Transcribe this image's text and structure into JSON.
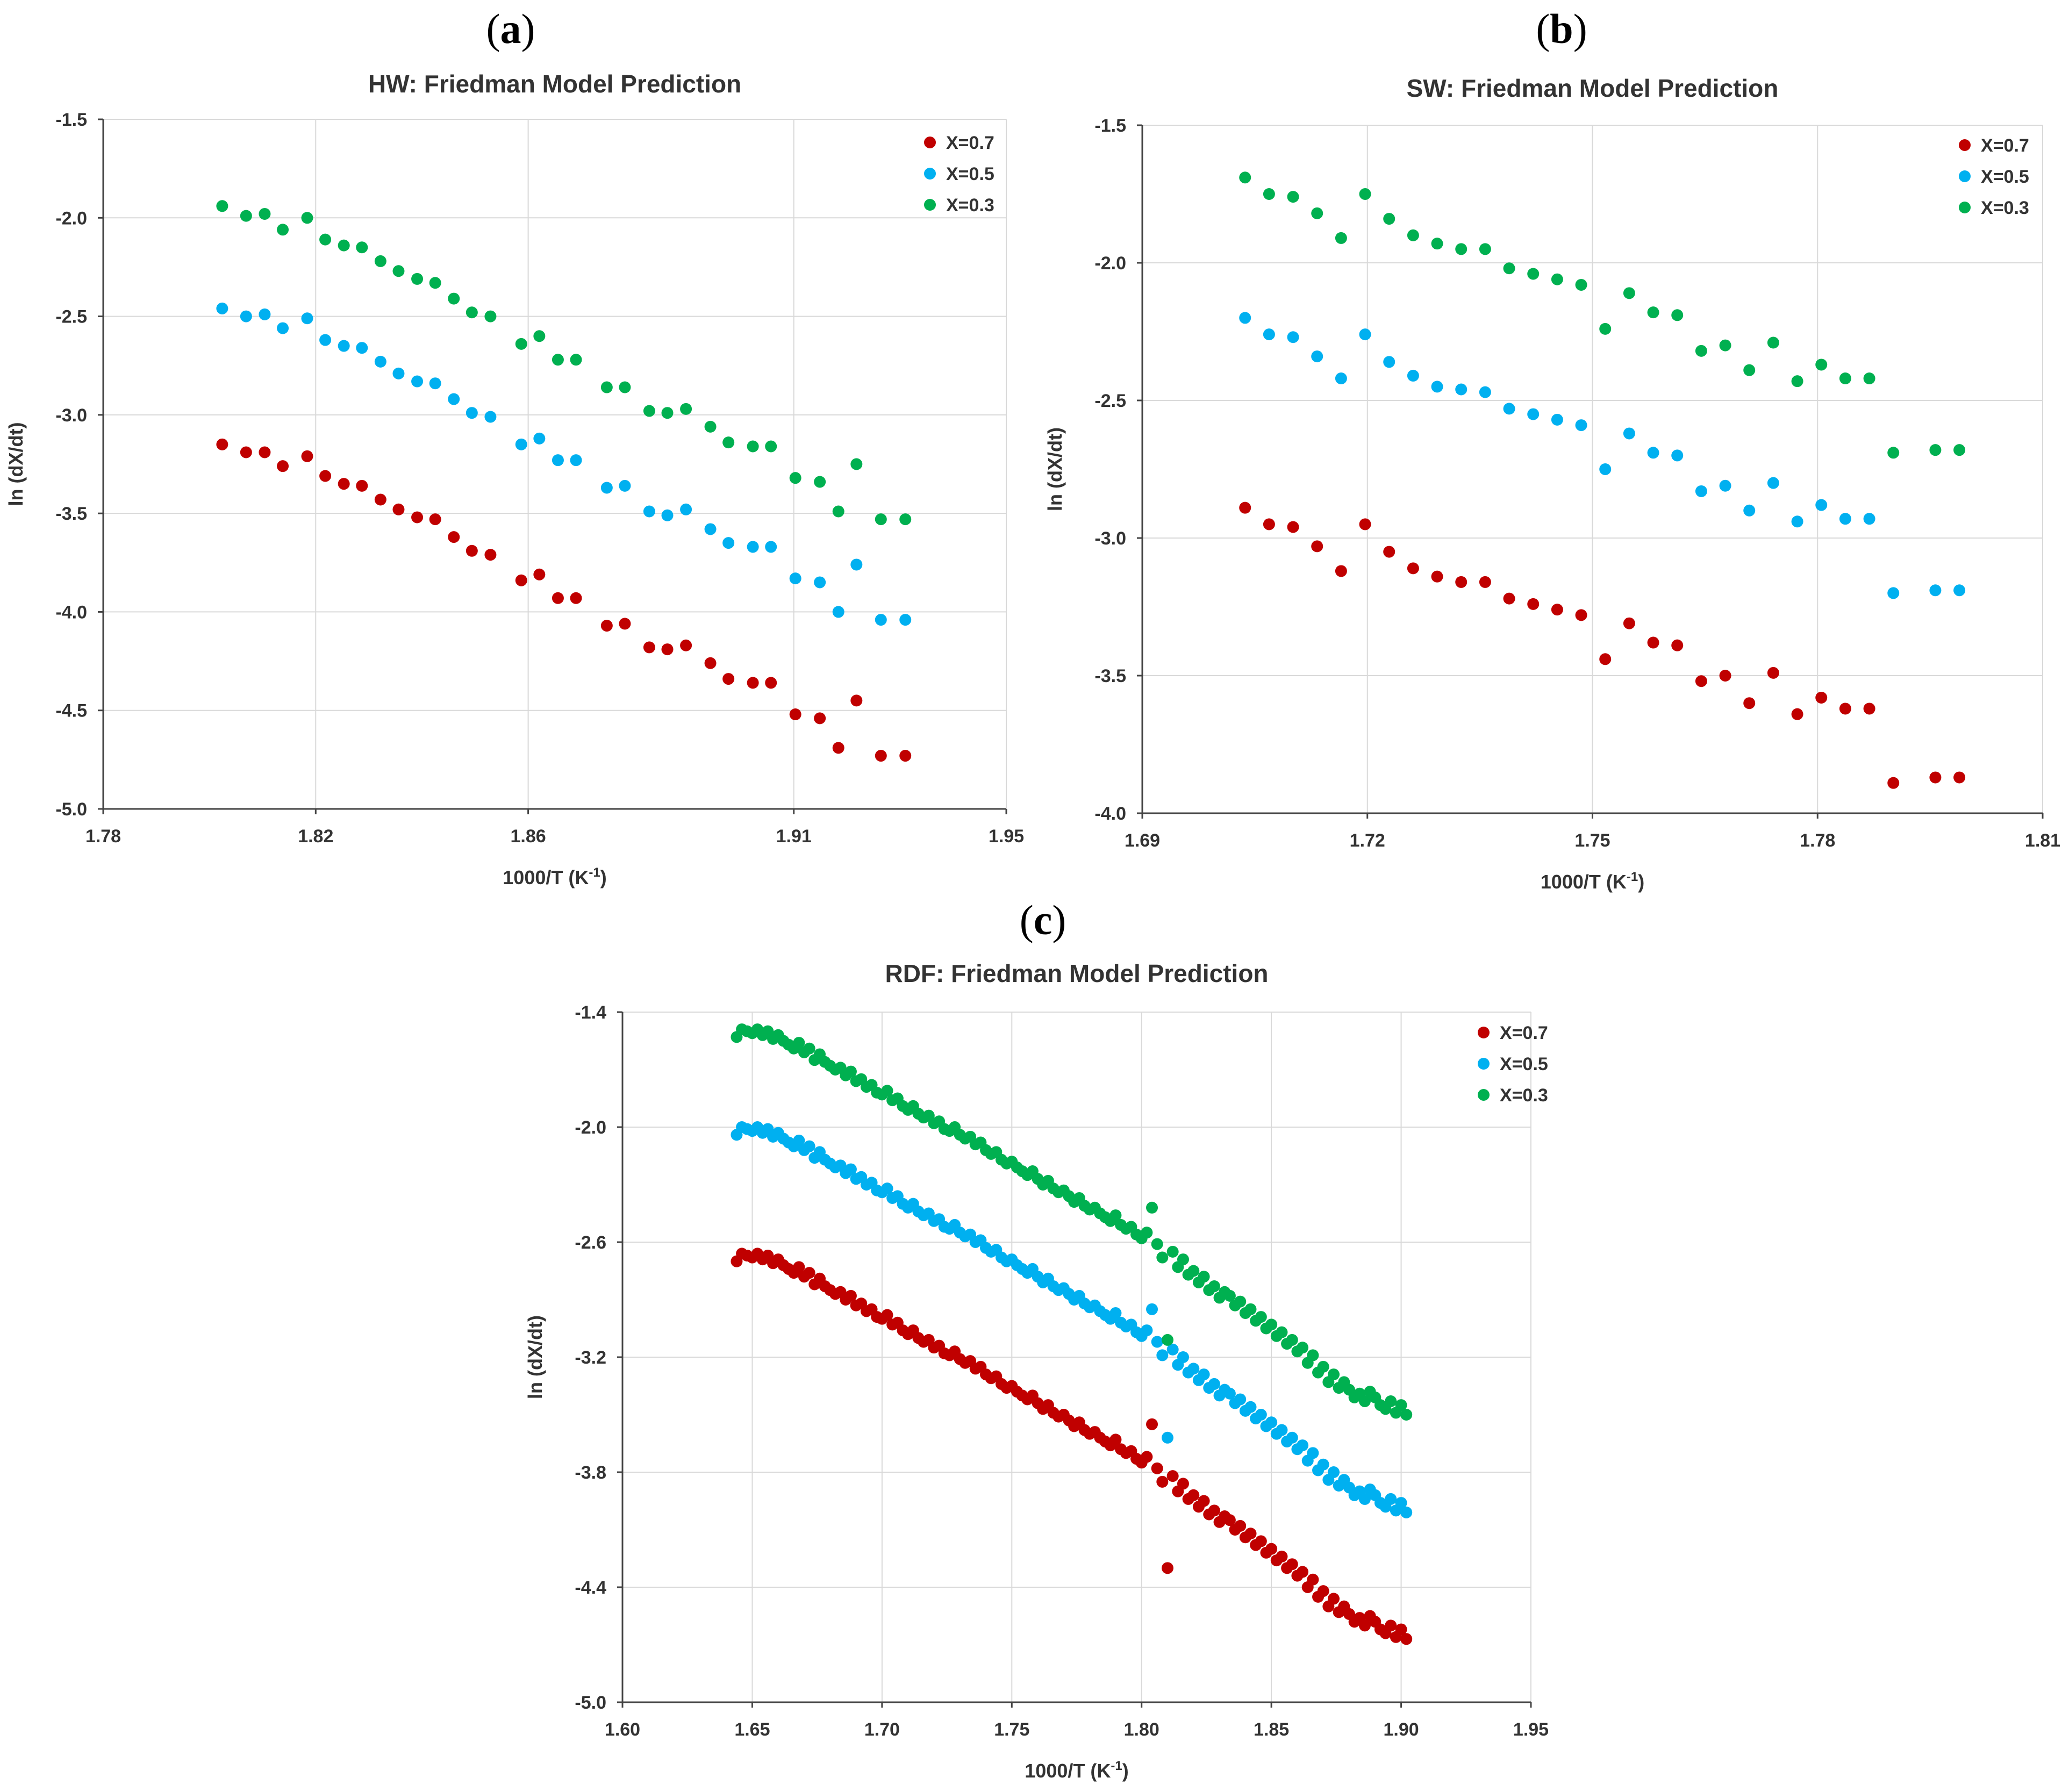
{
  "panels": [
    {
      "id": "a",
      "label_open": "(",
      "label_letter": "a",
      "label_close": ")"
    },
    {
      "id": "b",
      "label_open": "(",
      "label_letter": "b",
      "label_close": ")"
    },
    {
      "id": "c",
      "label_open": "(",
      "label_letter": "c",
      "label_close": ")"
    }
  ],
  "colors": {
    "x07": "#c00000",
    "x05": "#00b0f0",
    "x03": "#00b050"
  },
  "chart_data": [
    {
      "id": "a",
      "type": "scatter",
      "title": "HW: Friedman Model Prediction",
      "xlabel": "1000/T (K",
      "xlabel_sup": "-1",
      "xlabel_close": ")",
      "ylabel": "ln (dX/dt)",
      "xlim": [
        1.78,
        1.95
      ],
      "ylim": [
        -5.0,
        -1.5
      ],
      "xticks": [
        1.78,
        1.82,
        1.86,
        1.91,
        1.95
      ],
      "xtick_labels": [
        "1.78",
        "1.82",
        "1.86",
        "1.91",
        "1.95"
      ],
      "yticks": [
        -5.0,
        -4.5,
        -4.0,
        -3.5,
        -3.0,
        -2.5,
        -2.0,
        -1.5
      ],
      "ytick_labels": [
        "-5.0",
        "-4.5",
        "-4.0",
        "-3.5",
        "-3.0",
        "-2.5",
        "-2.0",
        "-1.5"
      ],
      "legend": [
        "X=0.7",
        "X=0.5",
        "X=0.3"
      ],
      "x": [
        1.8024,
        1.8069,
        1.8104,
        1.8138,
        1.8184,
        1.8218,
        1.8253,
        1.8287,
        1.8322,
        1.8356,
        1.8391,
        1.8425,
        1.846,
        1.8494,
        1.8529,
        1.8587,
        1.8621,
        1.8656,
        1.869,
        1.8748,
        1.8782,
        1.8828,
        1.8862,
        1.8897,
        1.8943,
        1.8977,
        1.9023,
        1.9057,
        1.9103,
        1.9149,
        1.9184,
        1.9218,
        1.9264,
        1.931
      ],
      "series": [
        {
          "name": "X=0.7",
          "color": "#c00000",
          "y": [
            -3.15,
            -3.19,
            -3.19,
            -3.26,
            -3.21,
            -3.31,
            -3.35,
            -3.36,
            -3.43,
            -3.48,
            -3.52,
            -3.53,
            -3.62,
            -3.69,
            -3.71,
            -3.84,
            -3.81,
            -3.93,
            -3.93,
            -4.07,
            -4.06,
            -4.18,
            -4.19,
            -4.17,
            -4.26,
            -4.34,
            -4.36,
            -4.36,
            -4.52,
            -4.54,
            -4.69,
            -4.45,
            -4.73,
            -4.73
          ]
        },
        {
          "name": "X=0.5",
          "color": "#00b0f0",
          "y": [
            -2.46,
            -2.5,
            -2.49,
            -2.56,
            -2.51,
            -2.62,
            -2.65,
            -2.66,
            -2.73,
            -2.79,
            -2.83,
            -2.84,
            -2.92,
            -2.99,
            -3.01,
            -3.15,
            -3.12,
            -3.23,
            -3.23,
            -3.37,
            -3.36,
            -3.49,
            -3.51,
            -3.48,
            -3.58,
            -3.65,
            -3.67,
            -3.67,
            -3.83,
            -3.85,
            -4.0,
            -3.76,
            -4.04,
            -4.04
          ]
        },
        {
          "name": "X=0.3",
          "color": "#00b050",
          "y": [
            -1.94,
            -1.99,
            -1.98,
            -2.06,
            -2.0,
            -2.11,
            -2.14,
            -2.15,
            -2.22,
            -2.27,
            -2.31,
            -2.33,
            -2.41,
            -2.48,
            -2.5,
            -2.64,
            -2.6,
            -2.72,
            -2.72,
            -2.86,
            -2.86,
            -2.98,
            -2.99,
            -2.97,
            -3.06,
            -3.14,
            -3.16,
            -3.16,
            -3.32,
            -3.34,
            -3.49,
            -3.25,
            -3.53,
            -3.53
          ]
        }
      ]
    },
    {
      "id": "b",
      "type": "scatter",
      "title": "SW: Friedman Model Prediction",
      "xlabel": "1000/T (K",
      "xlabel_sup": "-1",
      "xlabel_close": ")",
      "ylabel": "ln (dX/dt)",
      "xlim": [
        1.69,
        1.81
      ],
      "ylim": [
        -4.0,
        -1.5
      ],
      "xticks": [
        1.69,
        1.72,
        1.75,
        1.78,
        1.81
      ],
      "xtick_labels": [
        "1.69",
        "1.72",
        "1.75",
        "1.78",
        "1.81"
      ],
      "yticks": [
        -4.0,
        -3.5,
        -3.0,
        -2.5,
        -2.0,
        -1.5
      ],
      "ytick_labels": [
        "-4.0",
        "-3.5",
        "-3.0",
        "-2.5",
        "-2.0",
        "-1.5"
      ],
      "legend": [
        "X=0.7",
        "X=0.5",
        "X=0.3"
      ],
      "x": [
        1.7037,
        1.7069,
        1.7101,
        1.7133,
        1.7165,
        1.7197,
        1.7229,
        1.7261,
        1.7293,
        1.7325,
        1.7357,
        1.7389,
        1.7421,
        1.7453,
        1.7485,
        1.7517,
        1.7549,
        1.7581,
        1.7613,
        1.7645,
        1.7677,
        1.7709,
        1.7741,
        1.7773,
        1.7805,
        1.7837,
        1.7869,
        1.7901,
        1.7957,
        1.7989
      ],
      "series": [
        {
          "name": "X=0.7",
          "color": "#c00000",
          "y": [
            -2.89,
            -2.95,
            -2.96,
            -3.03,
            -3.12,
            -2.95,
            -3.05,
            -3.11,
            -3.14,
            -3.16,
            -3.16,
            -3.22,
            -3.24,
            -3.26,
            -3.28,
            -3.44,
            -3.31,
            -3.38,
            -3.39,
            -3.52,
            -3.5,
            -3.6,
            -3.49,
            -3.64,
            -3.58,
            -3.62,
            -3.62,
            -3.89,
            -3.87,
            -3.87
          ]
        },
        {
          "name": "X=0.5",
          "color": "#00b0f0",
          "y": [
            -2.2,
            -2.26,
            -2.27,
            -2.34,
            -2.42,
            -2.26,
            -2.36,
            -2.41,
            -2.45,
            -2.46,
            -2.47,
            -2.53,
            -2.55,
            -2.57,
            -2.59,
            -2.75,
            -2.62,
            -2.69,
            -2.7,
            -2.83,
            -2.81,
            -2.9,
            -2.8,
            -2.94,
            -2.88,
            -2.93,
            -2.93,
            -3.2,
            -3.19,
            -3.19
          ]
        },
        {
          "name": "X=0.3",
          "color": "#00b050",
          "y": [
            -1.69,
            -1.75,
            -1.76,
            -1.82,
            -1.91,
            -1.75,
            -1.84,
            -1.9,
            -1.93,
            -1.95,
            -1.95,
            -2.02,
            -2.04,
            -2.06,
            -2.08,
            -2.24,
            -2.11,
            -2.18,
            -2.19,
            -2.32,
            -2.3,
            -2.39,
            -2.29,
            -2.43,
            -2.37,
            -2.42,
            -2.42,
            -2.69,
            -2.68,
            -2.68
          ]
        }
      ]
    },
    {
      "id": "c",
      "type": "scatter",
      "title": "RDF: Friedman Model Prediction",
      "xlabel": "1000/T (K",
      "xlabel_sup": "-1",
      "xlabel_close": ")",
      "ylabel": "ln (dX/dt)",
      "xlim": [
        1.6,
        1.95
      ],
      "ylim": [
        -5.0,
        -1.4
      ],
      "xticks": [
        1.6,
        1.65,
        1.7,
        1.75,
        1.8,
        1.85,
        1.9,
        1.95
      ],
      "xtick_labels": [
        "1.60",
        "1.65",
        "1.70",
        "1.75",
        "1.80",
        "1.85",
        "1.90",
        "1.95"
      ],
      "yticks": [
        -5.0,
        -4.4,
        -3.8,
        -3.2,
        -2.6,
        -2.0,
        -1.4
      ],
      "ytick_labels": [
        "-5.0",
        "-4.4",
        "-3.8",
        "-3.2",
        "-2.6",
        "-2.0",
        "-1.4"
      ],
      "legend": [
        "X=0.7",
        "X=0.5",
        "X=0.3"
      ],
      "x": [
        1.644,
        1.646,
        1.648,
        1.65,
        1.652,
        1.654,
        1.656,
        1.658,
        1.66,
        1.662,
        1.664,
        1.666,
        1.668,
        1.67,
        1.672,
        1.674,
        1.676,
        1.678,
        1.68,
        1.682,
        1.684,
        1.686,
        1.688,
        1.69,
        1.692,
        1.694,
        1.696,
        1.698,
        1.7,
        1.702,
        1.704,
        1.706,
        1.708,
        1.71,
        1.712,
        1.714,
        1.716,
        1.718,
        1.72,
        1.722,
        1.724,
        1.726,
        1.728,
        1.73,
        1.732,
        1.734,
        1.736,
        1.738,
        1.74,
        1.742,
        1.744,
        1.746,
        1.748,
        1.75,
        1.752,
        1.754,
        1.756,
        1.758,
        1.76,
        1.762,
        1.764,
        1.766,
        1.768,
        1.77,
        1.772,
        1.774,
        1.776,
        1.778,
        1.78,
        1.782,
        1.784,
        1.786,
        1.788,
        1.79,
        1.792,
        1.794,
        1.796,
        1.798,
        1.8,
        1.802,
        1.804,
        1.806,
        1.808,
        1.81,
        1.812,
        1.814,
        1.816,
        1.818,
        1.82,
        1.822,
        1.824,
        1.826,
        1.828,
        1.83,
        1.832,
        1.834,
        1.836,
        1.838,
        1.84,
        1.842,
        1.844,
        1.846,
        1.848,
        1.85,
        1.852,
        1.854,
        1.856,
        1.858,
        1.86,
        1.862,
        1.864,
        1.866,
        1.868,
        1.87,
        1.872,
        1.874,
        1.876,
        1.878,
        1.88,
        1.882,
        1.884,
        1.886,
        1.888,
        1.89,
        1.892,
        1.894,
        1.896,
        1.898,
        1.9,
        1.902
      ],
      "series": [
        {
          "name": "X=0.7",
          "color": "#c00000",
          "y": [
            -2.7,
            -2.66,
            -2.67,
            -2.68,
            -2.66,
            -2.69,
            -2.67,
            -2.71,
            -2.69,
            -2.72,
            -2.74,
            -2.76,
            -2.73,
            -2.78,
            -2.76,
            -2.82,
            -2.79,
            -2.83,
            -2.85,
            -2.87,
            -2.86,
            -2.9,
            -2.88,
            -2.93,
            -2.92,
            -2.96,
            -2.95,
            -2.99,
            -3.0,
            -2.98,
            -3.03,
            -3.02,
            -3.06,
            -3.08,
            -3.06,
            -3.1,
            -3.12,
            -3.11,
            -3.15,
            -3.14,
            -3.18,
            -3.19,
            -3.17,
            -3.21,
            -3.23,
            -3.22,
            -3.26,
            -3.25,
            -3.29,
            -3.31,
            -3.3,
            -3.34,
            -3.36,
            -3.35,
            -3.38,
            -3.4,
            -3.42,
            -3.4,
            -3.44,
            -3.47,
            -3.45,
            -3.49,
            -3.51,
            -3.5,
            -3.53,
            -3.56,
            -3.54,
            -3.58,
            -3.6,
            -3.59,
            -3.62,
            -3.64,
            -3.66,
            -3.63,
            -3.68,
            -3.7,
            -3.69,
            -3.73,
            -3.75,
            -3.72,
            -3.55,
            -3.78,
            -3.85,
            -4.3,
            -3.82,
            -3.9,
            -3.86,
            -3.94,
            -3.92,
            -3.98,
            -3.95,
            -4.02,
            -4.0,
            -4.06,
            -4.03,
            -4.05,
            -4.1,
            -4.08,
            -4.14,
            -4.12,
            -4.18,
            -4.16,
            -4.22,
            -4.2,
            -4.26,
            -4.24,
            -4.3,
            -4.28,
            -4.34,
            -4.32,
            -4.4,
            -4.36,
            -4.45,
            -4.42,
            -4.5,
            -4.46,
            -4.53,
            -4.5,
            -4.54,
            -4.58,
            -4.56,
            -4.6,
            -4.55,
            -4.58,
            -4.62,
            -4.64,
            -4.6,
            -4.66,
            -4.62,
            -4.67
          ]
        },
        {
          "name": "X=0.5",
          "color": "#00b0f0",
          "y": [
            -2.04,
            -2.0,
            -2.01,
            -2.02,
            -2.0,
            -2.03,
            -2.01,
            -2.05,
            -2.03,
            -2.06,
            -2.08,
            -2.1,
            -2.07,
            -2.12,
            -2.1,
            -2.16,
            -2.13,
            -2.17,
            -2.19,
            -2.21,
            -2.2,
            -2.24,
            -2.22,
            -2.27,
            -2.26,
            -2.3,
            -2.29,
            -2.33,
            -2.34,
            -2.32,
            -2.37,
            -2.36,
            -2.4,
            -2.42,
            -2.4,
            -2.44,
            -2.46,
            -2.45,
            -2.49,
            -2.48,
            -2.52,
            -2.53,
            -2.51,
            -2.55,
            -2.57,
            -2.56,
            -2.6,
            -2.59,
            -2.63,
            -2.65,
            -2.64,
            -2.68,
            -2.7,
            -2.69,
            -2.72,
            -2.74,
            -2.76,
            -2.74,
            -2.78,
            -2.81,
            -2.79,
            -2.83,
            -2.85,
            -2.84,
            -2.87,
            -2.9,
            -2.88,
            -2.92,
            -2.94,
            -2.93,
            -2.96,
            -2.98,
            -3.0,
            -2.97,
            -3.02,
            -3.04,
            -3.03,
            -3.07,
            -3.09,
            -3.06,
            -2.95,
            -3.12,
            -3.19,
            -3.62,
            -3.16,
            -3.24,
            -3.2,
            -3.28,
            -3.26,
            -3.32,
            -3.29,
            -3.36,
            -3.34,
            -3.4,
            -3.37,
            -3.39,
            -3.44,
            -3.42,
            -3.48,
            -3.46,
            -3.52,
            -3.5,
            -3.56,
            -3.54,
            -3.6,
            -3.58,
            -3.64,
            -3.62,
            -3.68,
            -3.66,
            -3.74,
            -3.7,
            -3.79,
            -3.76,
            -3.84,
            -3.8,
            -3.87,
            -3.84,
            -3.88,
            -3.92,
            -3.9,
            -3.94,
            -3.89,
            -3.92,
            -3.96,
            -3.98,
            -3.94,
            -4.0,
            -3.96,
            -4.01
          ]
        },
        {
          "name": "X=0.3",
          "color": "#00b050",
          "y": [
            -1.53,
            -1.49,
            -1.5,
            -1.51,
            -1.49,
            -1.52,
            -1.5,
            -1.54,
            -1.52,
            -1.55,
            -1.57,
            -1.59,
            -1.56,
            -1.61,
            -1.59,
            -1.65,
            -1.62,
            -1.66,
            -1.68,
            -1.7,
            -1.69,
            -1.73,
            -1.71,
            -1.76,
            -1.75,
            -1.79,
            -1.78,
            -1.82,
            -1.83,
            -1.81,
            -1.86,
            -1.85,
            -1.89,
            -1.91,
            -1.89,
            -1.93,
            -1.95,
            -1.94,
            -1.98,
            -1.97,
            -2.01,
            -2.02,
            -2.0,
            -2.04,
            -2.06,
            -2.05,
            -2.09,
            -2.08,
            -2.12,
            -2.14,
            -2.13,
            -2.17,
            -2.19,
            -2.18,
            -2.21,
            -2.23,
            -2.25,
            -2.23,
            -2.27,
            -2.3,
            -2.28,
            -2.32,
            -2.34,
            -2.33,
            -2.36,
            -2.39,
            -2.37,
            -2.41,
            -2.43,
            -2.42,
            -2.45,
            -2.47,
            -2.49,
            -2.46,
            -2.51,
            -2.53,
            -2.52,
            -2.56,
            -2.58,
            -2.55,
            -2.42,
            -2.61,
            -2.68,
            -3.11,
            -2.65,
            -2.73,
            -2.69,
            -2.77,
            -2.75,
            -2.81,
            -2.78,
            -2.85,
            -2.83,
            -2.89,
            -2.86,
            -2.88,
            -2.93,
            -2.91,
            -2.97,
            -2.95,
            -3.01,
            -2.99,
            -3.05,
            -3.03,
            -3.09,
            -3.07,
            -3.13,
            -3.11,
            -3.17,
            -3.15,
            -3.23,
            -3.19,
            -3.28,
            -3.25,
            -3.33,
            -3.29,
            -3.36,
            -3.33,
            -3.37,
            -3.41,
            -3.39,
            -3.43,
            -3.38,
            -3.41,
            -3.45,
            -3.47,
            -3.43,
            -3.49,
            -3.45,
            -3.5
          ]
        }
      ]
    }
  ]
}
